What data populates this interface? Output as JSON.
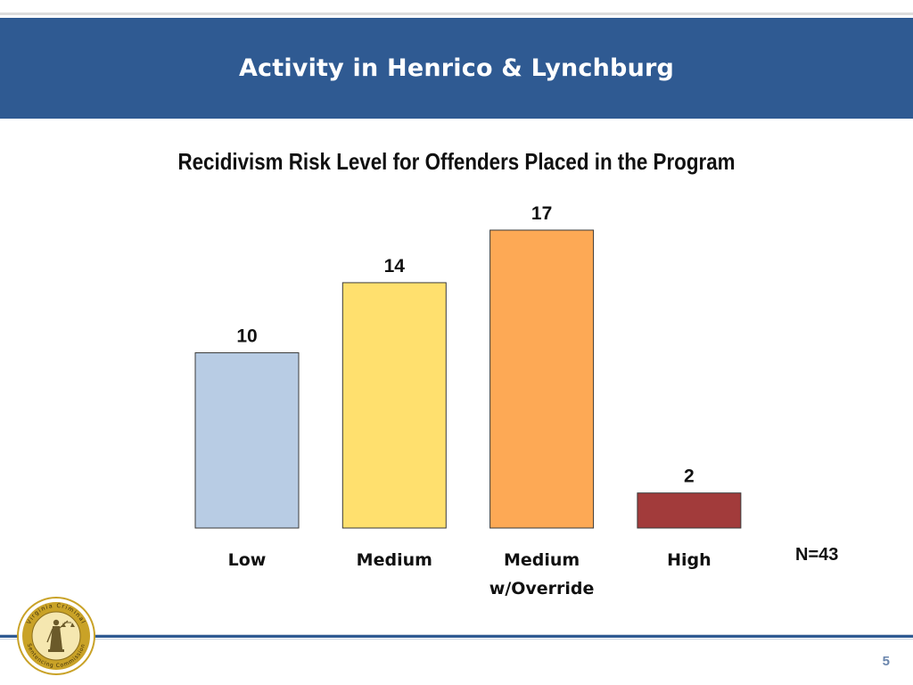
{
  "banner": {
    "title": "Activity in Henrico & Lynchburg"
  },
  "chart_data": {
    "type": "bar",
    "title": "Recidivism Risk Level for Offenders Placed in the Program",
    "categories": [
      {
        "lines": [
          "Low"
        ]
      },
      {
        "lines": [
          "Medium"
        ]
      },
      {
        "lines": [
          "Medium",
          "w/Override"
        ]
      },
      {
        "lines": [
          "High"
        ]
      }
    ],
    "values": [
      10,
      14,
      17,
      2
    ],
    "colors": [
      "#b8cce4",
      "#ffe06e",
      "#fda955",
      "#a23b3b"
    ],
    "ylim": [
      0,
      17
    ],
    "grid": false,
    "legend": "none",
    "note": "N=43"
  },
  "seal": {
    "text_top": "Virginia Criminal",
    "text_bottom": "Sentencing Commission",
    "colors": {
      "ring": "#c9a227",
      "inner": "#f5e7b0",
      "figure": "#6b5a2a"
    }
  },
  "footer": {
    "page_number": "5"
  }
}
